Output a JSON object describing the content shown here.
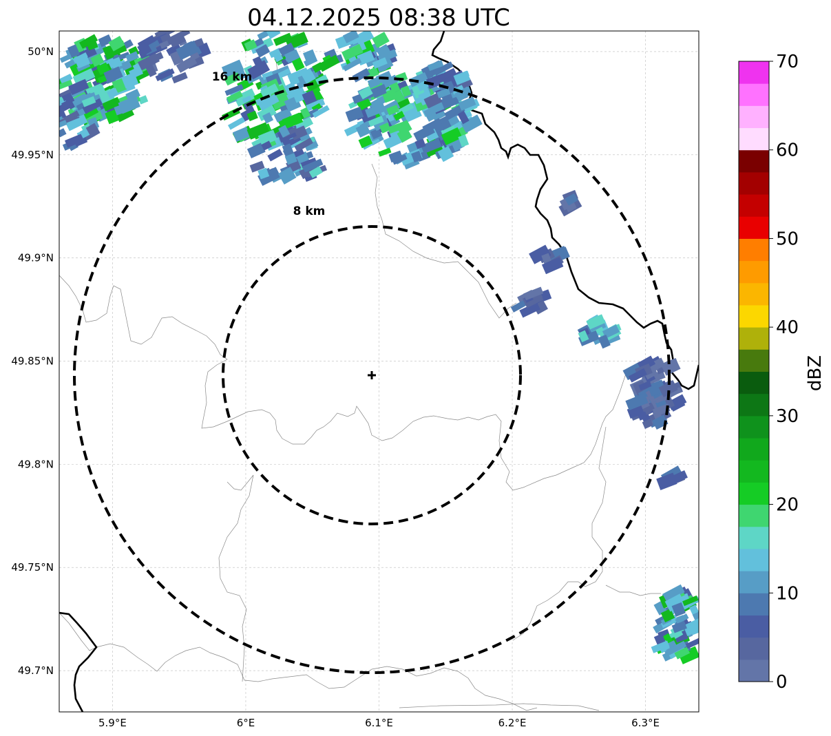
{
  "title": "04.12.2025 08:38 UTC",
  "map": {
    "lon_range": [
      5.86,
      6.34
    ],
    "lat_range": [
      49.68,
      50.01
    ],
    "radar_site": {
      "lon": 6.094,
      "lat": 49.843
    },
    "x_ticks": [
      {
        "value": 5.9,
        "label": "5.9°E"
      },
      {
        "value": 6.0,
        "label": "6°E"
      },
      {
        "value": 6.1,
        "label": "6.1°E"
      },
      {
        "value": 6.2,
        "label": "6.2°E"
      },
      {
        "value": 6.3,
        "label": "6.3°E"
      }
    ],
    "y_ticks": [
      {
        "value": 50.0,
        "label": "50°N"
      },
      {
        "value": 49.95,
        "label": "49.95°N"
      },
      {
        "value": 49.9,
        "label": "49.9°N"
      },
      {
        "value": 49.85,
        "label": "49.85°N"
      },
      {
        "value": 49.8,
        "label": "49.8°N"
      },
      {
        "value": 49.75,
        "label": "49.75°N"
      },
      {
        "value": 49.7,
        "label": "49.7°N"
      }
    ],
    "range_rings": [
      {
        "label": "8 km",
        "radius_km": 8
      },
      {
        "label": "16 km",
        "radius_km": 16
      }
    ]
  },
  "colorbar": {
    "label": "dBZ",
    "min": 0,
    "max": 70,
    "ticks": [
      {
        "value": 0,
        "label": "0"
      },
      {
        "value": 10,
        "label": "10"
      },
      {
        "value": 20,
        "label": "20"
      },
      {
        "value": 30,
        "label": "30"
      },
      {
        "value": 40,
        "label": "40"
      },
      {
        "value": 50,
        "label": "50"
      },
      {
        "value": 60,
        "label": "60"
      },
      {
        "value": 70,
        "label": "70"
      }
    ],
    "colors": [
      "#6375a8",
      "#57679f",
      "#4a5da3",
      "#4d79b0",
      "#579dc6",
      "#62c0dc",
      "#5ed6c6",
      "#3fd670",
      "#15cc25",
      "#13b81f",
      "#11a81c",
      "#0f921c",
      "#0d7715",
      "#0a5c0e",
      "#487a0d",
      "#afb10a",
      "#fcd700",
      "#fbb600",
      "#fe9b00",
      "#ff7e00",
      "#e90000",
      "#c40000",
      "#a30000",
      "#7a0000",
      "#ffdcff",
      "#ffb1ff",
      "#ff72ff",
      "#ef33ef"
    ]
  }
}
